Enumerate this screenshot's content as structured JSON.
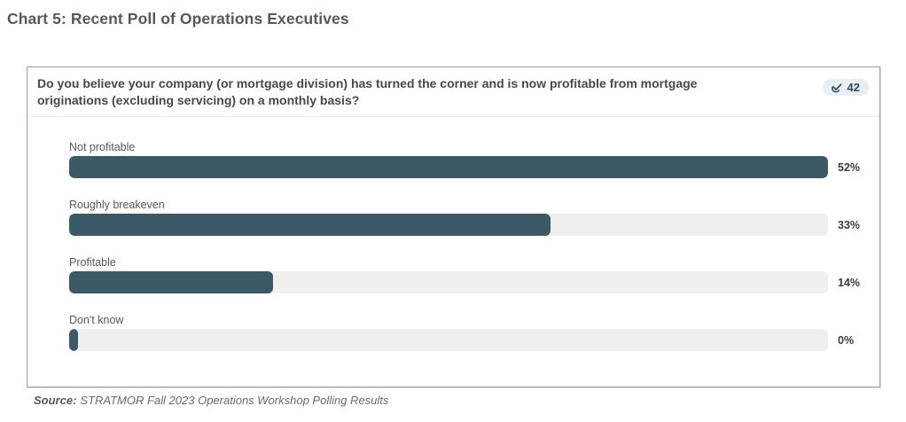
{
  "page": {
    "title": "Chart 5: Recent Poll of Operations Executives"
  },
  "panel": {
    "question": "Do you believe your company (or mortgage division) has turned the corner and is now profitable from mortgage originations (excluding servicing) on a monthly basis?",
    "respondents": {
      "count": "42",
      "icon": "vote-check-icon"
    }
  },
  "source": {
    "label": "Source:",
    "text": "STRATMOR Fall 2023 Operations Workshop Polling Results"
  },
  "colors": {
    "bar_fill": "#3c5a66",
    "bar_track": "#efefef",
    "badge_bg": "#e8eef4",
    "badge_text": "#2f4b5c",
    "panel_border": "#9e9e9e"
  },
  "chart_data": {
    "type": "bar",
    "orientation": "horizontal",
    "title": "Do you believe your company (or mortgage division) has turned the corner and is now profitable from mortgage originations (excluding servicing) on a monthly basis?",
    "categories": [
      "Not profitable",
      "Roughly breakeven",
      "Profitable",
      "Don't know"
    ],
    "values": [
      52,
      33,
      14,
      0
    ],
    "value_labels": [
      "52%",
      "33%",
      "14%",
      "0%"
    ],
    "respondent_count": 42,
    "xlabel": "",
    "ylabel": "",
    "xlim": [
      0,
      52
    ],
    "grid": false,
    "legend": false,
    "note": "bar lengths scaled relative to max value (52% = full track width)"
  }
}
